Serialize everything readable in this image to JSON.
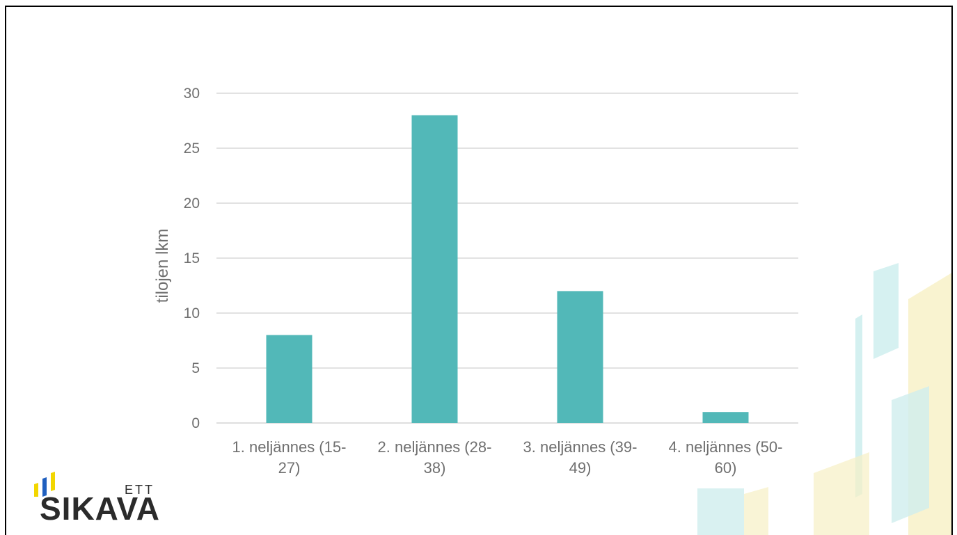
{
  "chart_data": {
    "type": "bar",
    "categories": [
      [
        "1. neljännes (15-",
        "27)"
      ],
      [
        "2. neljännes (28-",
        "38)"
      ],
      [
        "3. neljännes (39-",
        "49)"
      ],
      [
        "4. neljännes (50-",
        "60)"
      ]
    ],
    "values": [
      8,
      28,
      12,
      1
    ],
    "ylabel": "tilojen lkm",
    "ylim": [
      0,
      30
    ],
    "yticks": [
      0,
      5,
      10,
      15,
      20,
      25,
      30
    ],
    "grid": true,
    "bar_color": "#52b8b8"
  },
  "logo": {
    "text": "SIKAVA",
    "small_text": "ETT",
    "colors": [
      "#f2d600",
      "#1f5fbf"
    ]
  },
  "decor_colors": {
    "teal_light": "#cfeeee",
    "yellow_light": "#f7f0c4"
  }
}
